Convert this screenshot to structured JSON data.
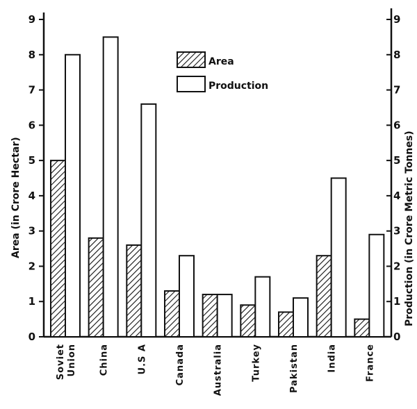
{
  "chart_data": {
    "type": "bar",
    "categories": [
      "Soviet Union",
      "China",
      "U.S A",
      "Canada",
      "Australia",
      "Turkey",
      "Pakistan",
      "India",
      "France"
    ],
    "category_lines": [
      [
        "Soviet",
        "Union"
      ],
      [
        "China"
      ],
      [
        "U.S A"
      ],
      [
        "Canada"
      ],
      [
        "Australia"
      ],
      [
        "Turkey"
      ],
      [
        "Pakistan"
      ],
      [
        "India"
      ],
      [
        "France"
      ]
    ],
    "series": [
      {
        "name": "Area",
        "axis": "left",
        "pattern": "hatch",
        "values": [
          5.0,
          2.8,
          2.6,
          1.3,
          1.2,
          0.9,
          0.7,
          2.3,
          0.5
        ]
      },
      {
        "name": "Production",
        "axis": "right",
        "pattern": "none",
        "values": [
          8.0,
          8.5,
          6.6,
          2.3,
          1.2,
          1.7,
          1.1,
          4.5,
          2.9
        ]
      }
    ],
    "ylabel": "Area (in Crore Hectar)",
    "y2label": "Production (in Crore Metric Tonnes)",
    "ylim": [
      0,
      9
    ],
    "y2lim": [
      0,
      9
    ],
    "yticks": [
      "0",
      "1",
      "2",
      "3",
      "4",
      "5",
      "6",
      "7",
      "8",
      "9"
    ],
    "y2ticks": [
      "0",
      "1",
      "2",
      "3",
      "4",
      "5",
      "6",
      "7",
      "8",
      "9"
    ],
    "legend_position": "top-center",
    "colors": {
      "ink": "#111111",
      "background": "#ffffff"
    }
  }
}
